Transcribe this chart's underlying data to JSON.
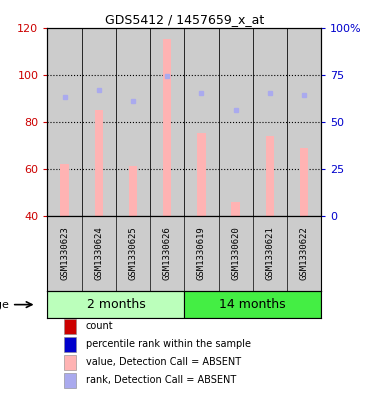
{
  "title": "GDS5412 / 1457659_x_at",
  "samples": [
    "GSM1330623",
    "GSM1330624",
    "GSM1330625",
    "GSM1330626",
    "GSM1330619",
    "GSM1330620",
    "GSM1330621",
    "GSM1330622"
  ],
  "groups": {
    "2 months": [
      0,
      1,
      2,
      3
    ],
    "14 months": [
      4,
      5,
      6,
      7
    ]
  },
  "group_colors": {
    "2 months": "#bbffbb",
    "14 months": "#44ee44"
  },
  "bar_base": 40,
  "bar_values_absent": [
    62,
    85,
    61,
    115,
    75,
    46,
    74,
    69
  ],
  "rank_values_absent": [
    63,
    67,
    61,
    74,
    65,
    56,
    65,
    64
  ],
  "bar_color_absent": "#ffb3b3",
  "rank_color_absent": "#aaaaee",
  "ylim_left": [
    40,
    120
  ],
  "ylim_right": [
    0,
    100
  ],
  "yticks_left": [
    40,
    60,
    80,
    100,
    120
  ],
  "yticks_right": [
    0,
    25,
    50,
    75,
    100
  ],
  "ytick_labels_right": [
    "0",
    "25",
    "50",
    "75",
    "100%"
  ],
  "left_axis_color": "#cc0000",
  "right_axis_color": "#0000cc",
  "bg_color": "#cccccc",
  "plot_bg": "#ffffff",
  "legend_items": [
    {
      "color": "#cc0000",
      "label": "count"
    },
    {
      "color": "#0000cc",
      "label": "percentile rank within the sample"
    },
    {
      "color": "#ffb3b3",
      "label": "value, Detection Call = ABSENT"
    },
    {
      "color": "#aaaaee",
      "label": "rank, Detection Call = ABSENT"
    }
  ]
}
